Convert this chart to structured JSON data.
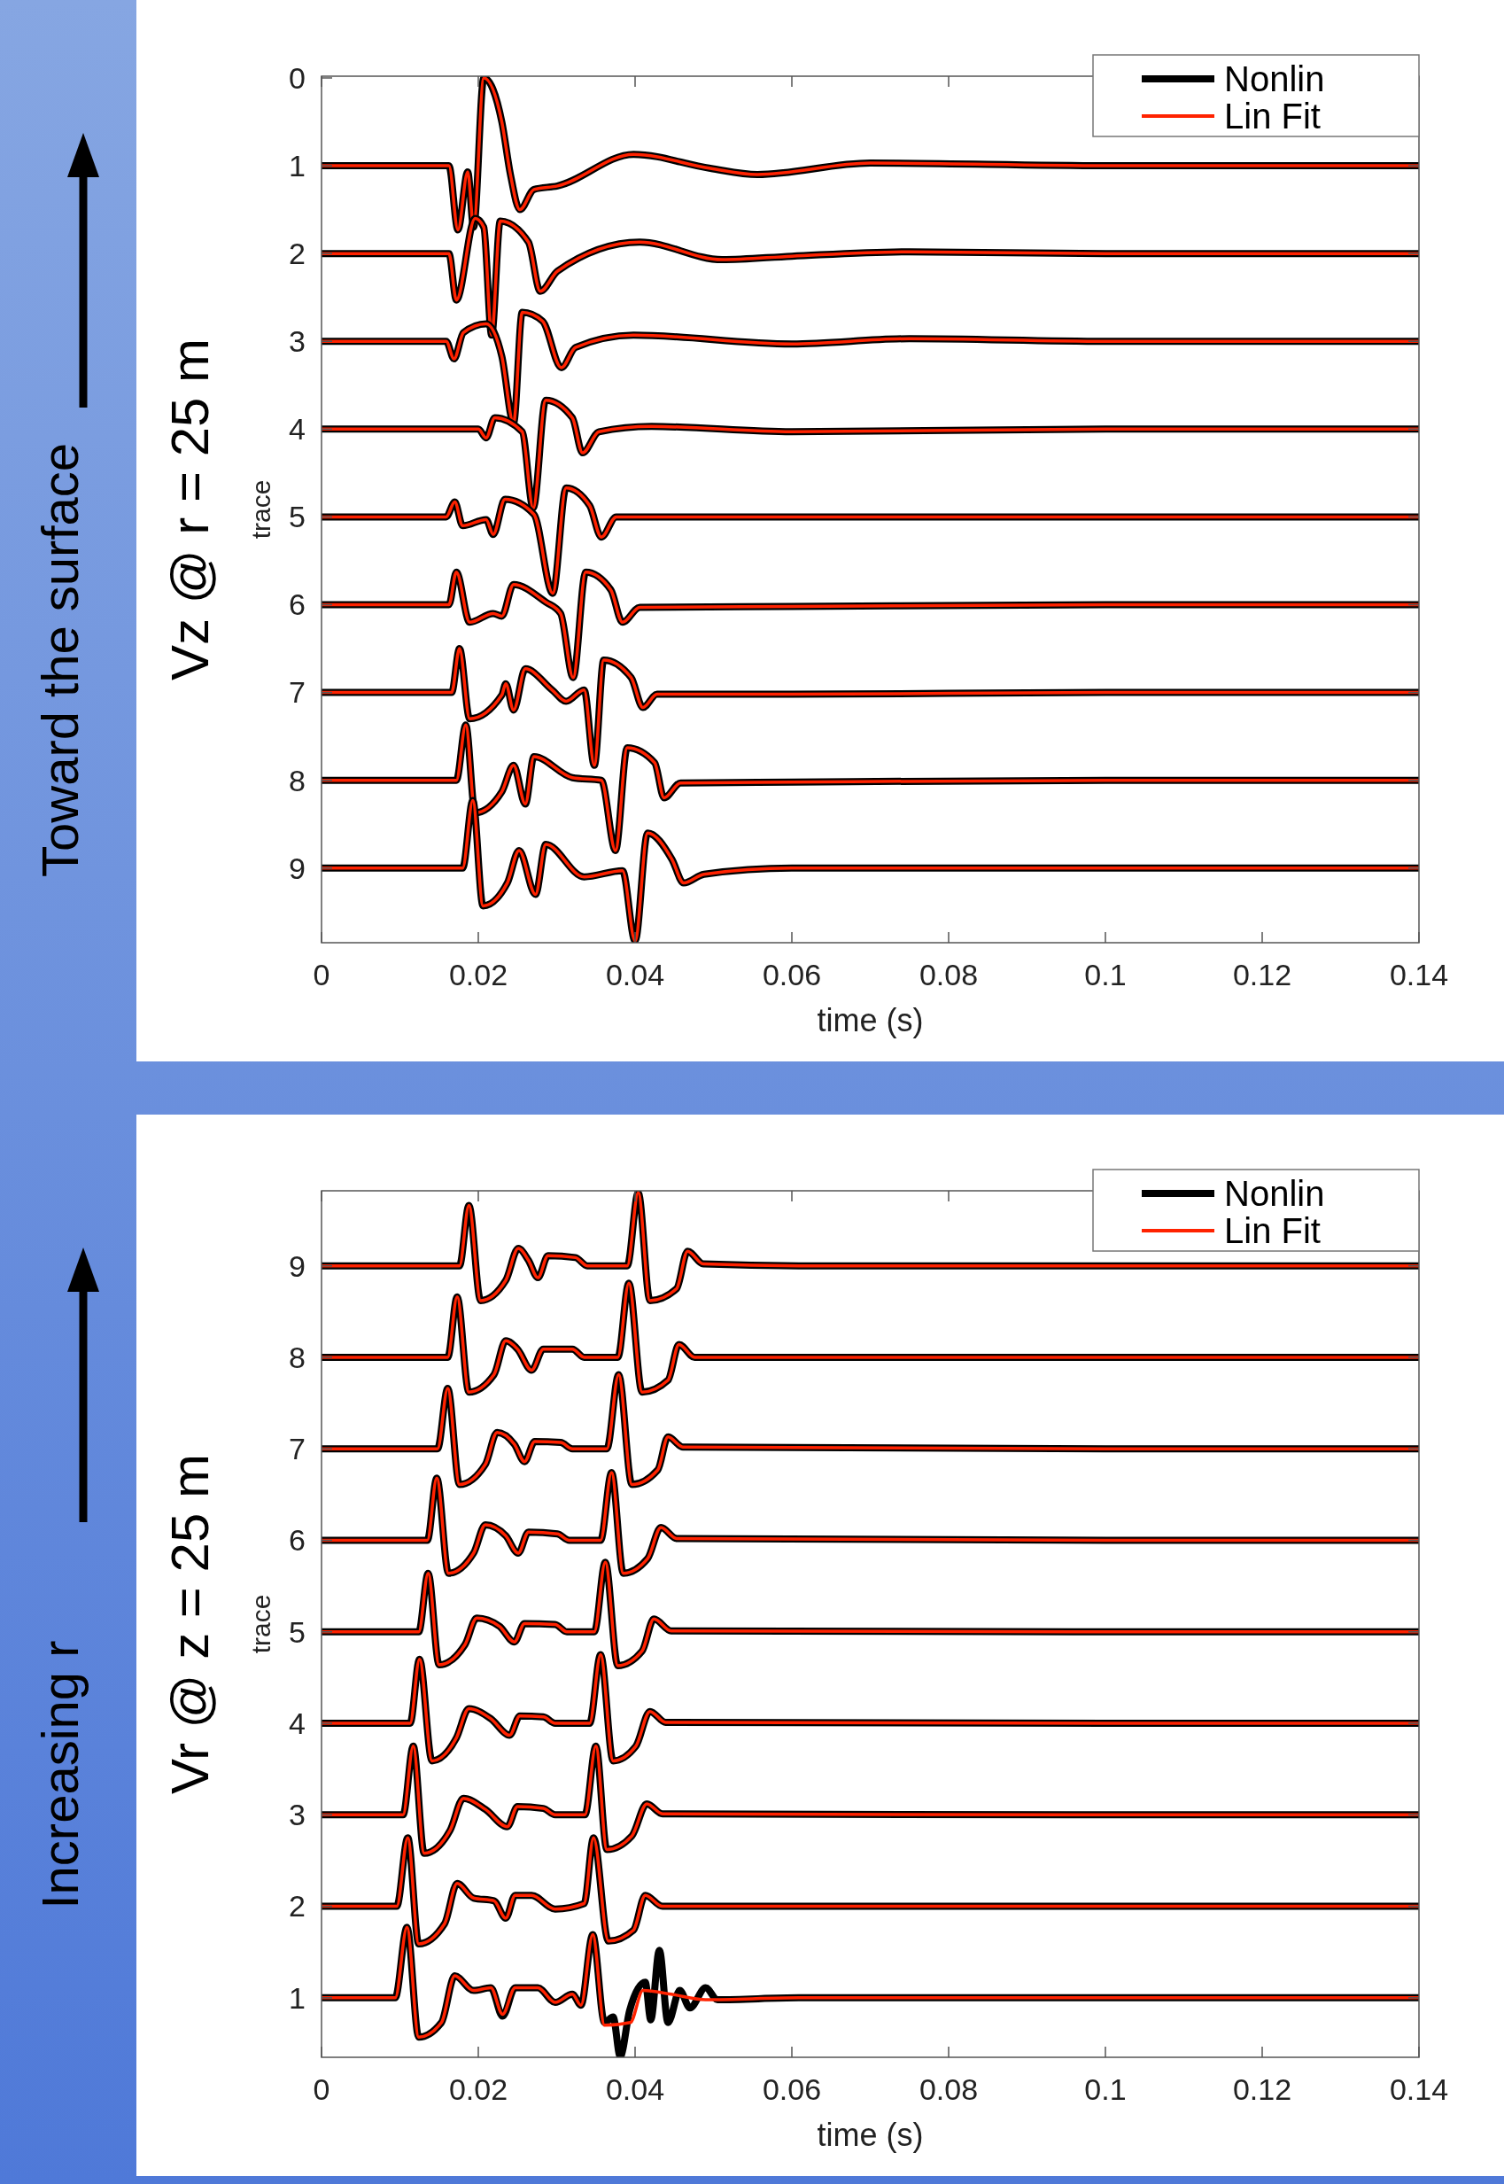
{
  "chart_data": [
    {
      "type": "line",
      "title": "Vz @ r = 25 m",
      "annotations": [
        "Toward the surface"
      ],
      "xlabel": "time (s)",
      "ylabel": "trace",
      "xlim": [
        0,
        0.14
      ],
      "xticks": [
        0,
        0.02,
        0.04,
        0.06,
        0.08,
        0.1,
        0.12,
        0.14
      ],
      "ylim": [
        9.85,
        -0.02
      ],
      "yticks": [
        0,
        1,
        2,
        3,
        4,
        5,
        6,
        7,
        8,
        9
      ],
      "legend": "top right",
      "series": [
        {
          "name": "Nonlin",
          "color": "#000000",
          "x": [
            0,
            0.01625,
            0.0174,
            0.01865,
            0.0194,
            0.0207,
            0.023,
            0.0241,
            0.0253,
            0.0271,
            0.0301,
            0.0398,
            0.0496,
            0.0556,
            0.07,
            0.1,
            0.14
          ],
          "values": [
            1,
            1,
            1.73,
            1.07,
            1.7,
            0,
            0.5,
            1.1,
            1.5,
            1.27,
            1.23,
            0.87,
            1.03,
            1.1,
            0.97,
            1,
            1
          ]
        },
        {
          "name": "Lin Fit",
          "color": "#ff2200",
          "x": [
            0,
            0.01625,
            0.0174,
            0.01865,
            0.0194,
            0.0207,
            0.023,
            0.0241,
            0.0253,
            0.0271,
            0.0301,
            0.0398,
            0.0496,
            0.0556,
            0.07,
            0.1,
            0.14
          ],
          "values": [
            1,
            1,
            1.73,
            1.07,
            1.7,
            0,
            0.5,
            1.1,
            1.5,
            1.27,
            1.23,
            0.87,
            1.03,
            1.1,
            0.97,
            1,
            1
          ]
        },
        {
          "color": "#000000",
          "x": [
            0,
            0.01625,
            0.0172,
            0.0196,
            0.0207,
            0.0217,
            0.0228,
            0.0264,
            0.0279,
            0.0301,
            0.0406,
            0.0511,
            0.06,
            0.075,
            0.1,
            0.14
          ],
          "values": [
            2,
            2,
            2.53,
            1.6,
            1.7,
            2.93,
            1.63,
            1.87,
            2.43,
            2.2,
            1.87,
            2.07,
            2.03,
            1.98,
            2,
            2
          ]
        },
        {
          "color": "#ff2200",
          "x": [
            0,
            0.01625,
            0.0172,
            0.0196,
            0.0207,
            0.0217,
            0.0228,
            0.0264,
            0.0279,
            0.0301,
            0.0406,
            0.0511,
            0.06,
            0.075,
            0.1,
            0.14
          ],
          "values": [
            2,
            2,
            2.53,
            1.6,
            1.7,
            2.93,
            1.63,
            1.87,
            2.43,
            2.2,
            1.87,
            2.07,
            2.03,
            1.98,
            2,
            2
          ]
        },
        {
          "color": "#000000",
          "x": [
            0,
            0.0159,
            0.0169,
            0.0181,
            0.021,
            0.023,
            0.0245,
            0.0256,
            0.0282,
            0.0306,
            0.0324,
            0.0398,
            0.06,
            0.075,
            0.1,
            0.14
          ],
          "values": [
            3,
            3,
            3.2,
            2.9,
            2.8,
            3.17,
            3.93,
            2.67,
            2.77,
            3.3,
            3.07,
            2.93,
            3.03,
            2.97,
            3,
            3
          ]
        },
        {
          "color": "#ff2200",
          "x": [
            0,
            0.0159,
            0.0169,
            0.0181,
            0.021,
            0.023,
            0.0245,
            0.0256,
            0.0282,
            0.0306,
            0.0324,
            0.0398,
            0.06,
            0.075,
            0.1,
            0.14
          ],
          "values": [
            3,
            3,
            3.2,
            2.9,
            2.8,
            3.17,
            3.93,
            2.67,
            2.77,
            3.3,
            3.07,
            2.93,
            3.03,
            2.97,
            3,
            3
          ]
        },
        {
          "color": "#000000",
          "x": [
            0,
            0.02,
            0.021,
            0.0221,
            0.0256,
            0.027,
            0.0286,
            0.032,
            0.0333,
            0.0354,
            0.0421,
            0.06,
            0.1,
            0.14
          ],
          "values": [
            4,
            4,
            4.1,
            3.87,
            4.03,
            4.9,
            3.67,
            3.87,
            4.27,
            4.03,
            3.97,
            4.03,
            4,
            4
          ]
        },
        {
          "color": "#ff2200",
          "x": [
            0,
            0.02,
            0.021,
            0.0221,
            0.0256,
            0.027,
            0.0286,
            0.032,
            0.0333,
            0.0354,
            0.0421,
            0.06,
            0.1,
            0.14
          ],
          "values": [
            4,
            4,
            4.1,
            3.87,
            4.03,
            4.9,
            3.67,
            3.87,
            4.27,
            4.03,
            3.97,
            4.03,
            4,
            4
          ]
        },
        {
          "color": "#000000",
          "x": [
            0,
            0.0159,
            0.017,
            0.018,
            0.021,
            0.0219,
            0.0234,
            0.0271,
            0.0295,
            0.0312,
            0.0342,
            0.0357,
            0.0376,
            0.06,
            0.1,
            0.14
          ],
          "values": [
            5,
            5,
            4.83,
            5.1,
            5.03,
            5.2,
            4.8,
            4.97,
            5.87,
            4.67,
            4.87,
            5.23,
            5,
            5,
            5,
            5
          ]
        },
        {
          "color": "#ff2200",
          "x": [
            0,
            0.0159,
            0.017,
            0.018,
            0.021,
            0.0219,
            0.0234,
            0.0271,
            0.0295,
            0.0312,
            0.0342,
            0.0357,
            0.0376,
            0.06,
            0.1,
            0.14
          ],
          "values": [
            5,
            5,
            4.83,
            5.1,
            5.03,
            5.2,
            4.8,
            4.97,
            5.87,
            4.67,
            4.87,
            5.23,
            5,
            5,
            5,
            5
          ]
        },
        {
          "color": "#000000",
          "x": [
            0,
            0.01625,
            0.0172,
            0.0189,
            0.0219,
            0.023,
            0.0245,
            0.0286,
            0.0305,
            0.0321,
            0.0337,
            0.0369,
            0.0384,
            0.0406,
            0.06,
            0.1,
            0.14
          ],
          "values": [
            6,
            6,
            5.63,
            6.2,
            6.1,
            6.13,
            5.77,
            5.97,
            6.1,
            6.83,
            5.63,
            5.83,
            6.2,
            6.03,
            6.02,
            6,
            6
          ]
        },
        {
          "color": "#ff2200",
          "x": [
            0,
            0.01625,
            0.0172,
            0.0189,
            0.0219,
            0.023,
            0.0245,
            0.0286,
            0.0305,
            0.0321,
            0.0337,
            0.0369,
            0.0384,
            0.0406,
            0.06,
            0.1,
            0.14
          ],
          "values": [
            6,
            6,
            5.63,
            6.2,
            6.1,
            6.13,
            5.77,
            5.97,
            6.1,
            6.83,
            5.63,
            5.83,
            6.2,
            6.03,
            6.02,
            6,
            6
          ]
        },
        {
          "color": "#000000",
          "x": [
            0,
            0.0166,
            0.0176,
            0.0189,
            0.023,
            0.0235,
            0.0245,
            0.026,
            0.0294,
            0.0312,
            0.0335,
            0.0348,
            0.036,
            0.0395,
            0.041,
            0.0428,
            0.06,
            0.1,
            0.14
          ],
          "values": [
            7,
            7,
            6.5,
            7.3,
            7.03,
            6.9,
            7.2,
            6.73,
            6.97,
            7.1,
            6.97,
            7.83,
            6.63,
            6.83,
            7.17,
            7.02,
            7.02,
            7,
            7
          ]
        },
        {
          "color": "#ff2200",
          "x": [
            0,
            0.0166,
            0.0176,
            0.0189,
            0.023,
            0.0235,
            0.0245,
            0.026,
            0.0294,
            0.0312,
            0.0335,
            0.0348,
            0.036,
            0.0395,
            0.041,
            0.0428,
            0.06,
            0.1,
            0.14
          ],
          "values": [
            7,
            7,
            6.5,
            7.3,
            7.03,
            6.9,
            7.2,
            6.73,
            6.97,
            7.1,
            6.97,
            7.83,
            6.63,
            6.83,
            7.17,
            7.02,
            7.02,
            7,
            7
          ]
        },
        {
          "color": "#000000",
          "x": [
            0,
            0.0172,
            0.0184,
            0.0196,
            0.023,
            0.0245,
            0.026,
            0.0271,
            0.032,
            0.0357,
            0.0375,
            0.039,
            0.0425,
            0.0437,
            0.0458,
            0.06,
            0.1,
            0.14
          ],
          "values": [
            8,
            8,
            7.37,
            8.37,
            8.13,
            7.83,
            8.27,
            7.73,
            7.97,
            8,
            8.8,
            7.63,
            7.8,
            8.2,
            8.03,
            8.02,
            8,
            8
          ]
        },
        {
          "color": "#ff2200",
          "x": [
            0,
            0.0172,
            0.0184,
            0.0196,
            0.023,
            0.0245,
            0.026,
            0.0271,
            0.032,
            0.0357,
            0.0375,
            0.039,
            0.0425,
            0.0437,
            0.0458,
            0.06,
            0.1,
            0.14
          ],
          "values": [
            8,
            8,
            7.37,
            8.37,
            8.13,
            7.83,
            8.27,
            7.73,
            7.97,
            8,
            8.8,
            7.63,
            7.8,
            8.2,
            8.03,
            8.02,
            8,
            8
          ]
        },
        {
          "color": "#000000",
          "x": [
            0,
            0.018,
            0.0193,
            0.0206,
            0.0237,
            0.0252,
            0.0273,
            0.0286,
            0.0335,
            0.0384,
            0.04,
            0.0416,
            0.0447,
            0.0462,
            0.0488,
            0.06,
            0.1,
            0.14
          ],
          "values": [
            9,
            9,
            8.23,
            9.43,
            9.17,
            8.8,
            9.3,
            8.73,
            9.1,
            9.03,
            9.83,
            8.6,
            8.9,
            9.17,
            9.07,
            9,
            9,
            9
          ]
        },
        {
          "color": "#ff2200",
          "x": [
            0,
            0.018,
            0.0193,
            0.0206,
            0.0237,
            0.0252,
            0.0273,
            0.0286,
            0.0335,
            0.0384,
            0.04,
            0.0416,
            0.0447,
            0.0462,
            0.0488,
            0.06,
            0.1,
            0.14
          ],
          "values": [
            9,
            9,
            8.23,
            9.43,
            9.17,
            8.8,
            9.3,
            8.73,
            9.1,
            9.03,
            9.83,
            8.6,
            8.9,
            9.17,
            9.07,
            9,
            9,
            9
          ]
        }
      ]
    },
    {
      "type": "line",
      "title": "Vr @ z = 25 m",
      "annotations": [
        "Increasing r"
      ],
      "xlabel": "time (s)",
      "ylabel": "trace",
      "xlim": [
        0,
        0.14
      ],
      "xticks": [
        0,
        0.02,
        0.04,
        0.06,
        0.08,
        0.1,
        0.12,
        0.14
      ],
      "ylim": [
        0.35,
        9.82
      ],
      "yticks": [
        1,
        2,
        3,
        4,
        5,
        6,
        7,
        8,
        9
      ],
      "legend": "top right",
      "series": [
        {
          "name": "Nonlin",
          "color": "#000000",
          "x": [
            0,
            0.0176,
            0.0188,
            0.0203,
            0.0235,
            0.0251,
            0.0264,
            0.0276,
            0.0289,
            0.0324,
            0.0339,
            0.039,
            0.0404,
            0.0419,
            0.0453,
            0.0467,
            0.0487,
            0.0609,
            0.1,
            0.14
          ],
          "values": [
            9,
            9,
            9.66,
            8.62,
            8.84,
            9.19,
            9.06,
            8.87,
            9.11,
            9.09,
            9,
            9,
            9.8,
            8.62,
            8.75,
            9.16,
            9.02,
            9,
            9,
            9
          ]
        },
        {
          "name": "Lin Fit",
          "color": "#ff2200",
          "x": [
            0,
            0.0176,
            0.0188,
            0.0203,
            0.0235,
            0.0251,
            0.0264,
            0.0276,
            0.0289,
            0.0324,
            0.0339,
            0.039,
            0.0404,
            0.0419,
            0.0453,
            0.0467,
            0.0487,
            0.0609,
            0.1,
            0.14
          ],
          "values": [
            9,
            9,
            9.66,
            8.62,
            8.84,
            9.19,
            9.06,
            8.87,
            9.11,
            9.09,
            9,
            9,
            9.8,
            8.62,
            8.75,
            9.16,
            9.02,
            9,
            9,
            9
          ]
        },
        {
          "color": "#000000",
          "x": [
            0,
            0.0161,
            0.0173,
            0.0188,
            0.022,
            0.0235,
            0.025,
            0.0268,
            0.0283,
            0.032,
            0.0335,
            0.0378,
            0.0392,
            0.0409,
            0.0442,
            0.0456,
            0.0476,
            0.1,
            0.14
          ],
          "values": [
            8,
            8,
            8.66,
            7.62,
            7.81,
            8.18,
            8.09,
            7.86,
            8.09,
            8.09,
            8,
            8,
            8.81,
            7.62,
            7.75,
            8.14,
            8,
            8,
            8
          ]
        },
        {
          "color": "#ff2200",
          "x": [
            0,
            0.0161,
            0.0173,
            0.0188,
            0.022,
            0.0235,
            0.025,
            0.0268,
            0.0283,
            0.032,
            0.0335,
            0.0378,
            0.0392,
            0.0409,
            0.0442,
            0.0456,
            0.0476,
            0.1,
            0.14
          ],
          "values": [
            8,
            8,
            8.66,
            7.62,
            7.81,
            8.18,
            8.09,
            7.86,
            8.09,
            8.09,
            8,
            8,
            8.81,
            7.62,
            7.75,
            8.14,
            8,
            8,
            8
          ]
        },
        {
          "color": "#000000",
          "x": [
            0,
            0.0148,
            0.0161,
            0.0176,
            0.0209,
            0.0224,
            0.0246,
            0.0259,
            0.0272,
            0.0305,
            0.032,
            0.0364,
            0.0379,
            0.0396,
            0.0429,
            0.0442,
            0.0461,
            0.1,
            0.14
          ],
          "values": [
            7,
            7,
            7.66,
            6.61,
            6.83,
            7.18,
            7.05,
            6.86,
            7.08,
            7.07,
            7,
            7,
            7.81,
            6.61,
            6.77,
            7.13,
            7.02,
            7,
            7
          ]
        },
        {
          "color": "#ff2200",
          "x": [
            0,
            0.0148,
            0.0161,
            0.0176,
            0.0209,
            0.0224,
            0.0246,
            0.0259,
            0.0272,
            0.0305,
            0.032,
            0.0364,
            0.0379,
            0.0396,
            0.0429,
            0.0442,
            0.0461,
            0.1,
            0.14
          ],
          "values": [
            7,
            7,
            7.66,
            6.61,
            6.83,
            7.18,
            7.05,
            6.86,
            7.08,
            7.07,
            7,
            7,
            7.81,
            6.61,
            6.77,
            7.13,
            7.02,
            7,
            7
          ]
        },
        {
          "color": "#000000",
          "x": [
            0,
            0.0135,
            0.0147,
            0.0162,
            0.0194,
            0.0209,
            0.0235,
            0.0251,
            0.0264,
            0.0301,
            0.0316,
            0.0356,
            0.037,
            0.0385,
            0.0416,
            0.0433,
            0.0453,
            0.1,
            0.14
          ],
          "values": [
            6,
            6,
            6.68,
            5.64,
            5.86,
            6.17,
            6.05,
            5.86,
            6.09,
            6.07,
            6,
            6,
            6.74,
            5.64,
            5.8,
            6.14,
            6.02,
            6,
            6
          ]
        },
        {
          "color": "#ff2200",
          "x": [
            0,
            0.0135,
            0.0147,
            0.0162,
            0.0194,
            0.0209,
            0.0235,
            0.0251,
            0.0264,
            0.0301,
            0.0316,
            0.0356,
            0.037,
            0.0385,
            0.0416,
            0.0433,
            0.0453,
            0.1,
            0.14
          ],
          "values": [
            6,
            6,
            6.68,
            5.64,
            5.86,
            6.17,
            6.05,
            5.86,
            6.09,
            6.07,
            6,
            6,
            6.74,
            5.64,
            5.8,
            6.14,
            6.02,
            6,
            6
          ]
        },
        {
          "color": "#000000",
          "x": [
            0,
            0.0124,
            0.0136,
            0.015,
            0.0183,
            0.0198,
            0.0227,
            0.0246,
            0.0259,
            0.0298,
            0.0313,
            0.0348,
            0.0362,
            0.0378,
            0.0409,
            0.0424,
            0.0446,
            0.1,
            0.14
          ],
          "values": [
            5,
            5,
            5.64,
            4.64,
            4.86,
            5.15,
            5.06,
            4.89,
            5.09,
            5.08,
            5,
            5,
            5.76,
            4.63,
            4.79,
            5.14,
            5.01,
            5,
            5
          ]
        },
        {
          "color": "#ff2200",
          "x": [
            0,
            0.0124,
            0.0136,
            0.015,
            0.0183,
            0.0198,
            0.0227,
            0.0246,
            0.0259,
            0.0298,
            0.0313,
            0.0348,
            0.0362,
            0.0378,
            0.0409,
            0.0424,
            0.0446,
            0.1,
            0.14
          ],
          "values": [
            5,
            5,
            5.64,
            4.64,
            4.86,
            5.15,
            5.06,
            4.89,
            5.09,
            5.08,
            5,
            5,
            5.76,
            4.63,
            4.79,
            5.14,
            5.01,
            5,
            5
          ]
        },
        {
          "color": "#000000",
          "x": [
            0,
            0.0113,
            0.0125,
            0.0141,
            0.0172,
            0.0188,
            0.0216,
            0.024,
            0.0253,
            0.0283,
            0.0298,
            0.0342,
            0.0356,
            0.0372,
            0.0401,
            0.0419,
            0.0439,
            0.1,
            0.14
          ],
          "values": [
            4,
            4,
            4.7,
            3.59,
            3.84,
            4.16,
            4.05,
            3.87,
            4.08,
            4.07,
            4,
            4,
            4.75,
            3.59,
            3.75,
            4.13,
            4.01,
            4,
            4
          ]
        },
        {
          "color": "#ff2200",
          "x": [
            0,
            0.0113,
            0.0125,
            0.0141,
            0.0172,
            0.0188,
            0.0216,
            0.024,
            0.0253,
            0.0283,
            0.0298,
            0.0342,
            0.0356,
            0.0372,
            0.0401,
            0.0419,
            0.0439,
            0.1,
            0.14
          ],
          "values": [
            4,
            4,
            4.7,
            3.59,
            3.84,
            4.16,
            4.05,
            3.87,
            4.08,
            4.07,
            4,
            4,
            4.75,
            3.59,
            3.75,
            4.13,
            4.01,
            4,
            4
          ]
        },
        {
          "color": "#000000",
          "x": [
            0,
            0.0104,
            0.0117,
            0.0131,
            0.0164,
            0.0181,
            0.0209,
            0.0237,
            0.025,
            0.0283,
            0.0298,
            0.0336,
            0.035,
            0.0364,
            0.0396,
            0.0415,
            0.0435,
            0.1,
            0.14
          ],
          "values": [
            3,
            3,
            3.75,
            2.58,
            2.83,
            3.18,
            3.06,
            2.87,
            3.09,
            3.07,
            3,
            3,
            3.75,
            2.62,
            2.77,
            3.12,
            3.01,
            3,
            3
          ]
        },
        {
          "color": "#ff2200",
          "x": [
            0,
            0.0104,
            0.0117,
            0.0131,
            0.0164,
            0.0181,
            0.0209,
            0.0237,
            0.025,
            0.0283,
            0.0298,
            0.0336,
            0.035,
            0.0364,
            0.0396,
            0.0415,
            0.0435,
            0.1,
            0.14
          ],
          "values": [
            3,
            3,
            3.75,
            2.58,
            2.83,
            3.18,
            3.06,
            2.87,
            3.09,
            3.07,
            3,
            3,
            3.75,
            2.62,
            2.77,
            3.12,
            3.01,
            3,
            3
          ]
        },
        {
          "color": "#000000",
          "x": [
            0,
            0.0096,
            0.011,
            0.0124,
            0.0157,
            0.0173,
            0.0194,
            0.022,
            0.0235,
            0.0247,
            0.0268,
            0.0298,
            0.0335,
            0.0347,
            0.0366,
            0.0398,
            0.0413,
            0.0435,
            0.1,
            0.14
          ],
          "values": [
            2,
            2,
            2.75,
            1.59,
            1.81,
            2.25,
            2.09,
            2.06,
            1.87,
            2.12,
            2.12,
            1.97,
            2.03,
            2.75,
            1.62,
            1.74,
            2.12,
            2,
            2,
            2
          ]
        },
        {
          "color": "#ff2200",
          "x": [
            0,
            0.0096,
            0.011,
            0.0124,
            0.0157,
            0.0173,
            0.0194,
            0.022,
            0.0235,
            0.0247,
            0.0268,
            0.0298,
            0.0335,
            0.0347,
            0.0366,
            0.0398,
            0.0413,
            0.0435,
            0.1,
            0.14
          ],
          "values": [
            2,
            2,
            2.75,
            1.59,
            1.81,
            2.25,
            2.09,
            2.06,
            1.87,
            2.12,
            2.12,
            1.97,
            2.03,
            2.75,
            1.62,
            1.74,
            2.12,
            2,
            2,
            2
          ]
        },
        {
          "color": "#000000",
          "x": [
            0,
            0.0094,
            0.0109,
            0.0124,
            0.0153,
            0.017,
            0.0194,
            0.0216,
            0.0231,
            0.0247,
            0.0276,
            0.0298,
            0.032,
            0.0331,
            0.0346,
            0.0361,
            0.0372,
            0.0381,
            0.0393,
            0.0413,
            0.042,
            0.0431,
            0.0442,
            0.0457,
            0.047,
            0.049,
            0.0505,
            0.0609,
            0.1,
            0.14
          ],
          "values": [
            1,
            1,
            1.77,
            0.57,
            0.73,
            1.24,
            1.08,
            1.11,
            0.8,
            1.11,
            1.11,
            0.95,
            1.04,
            0.92,
            1.69,
            0.73,
            0.79,
            0.36,
            0.86,
            1.17,
            0.76,
            1.52,
            0.73,
            1.08,
            0.89,
            1.11,
            0.98,
            1,
            1,
            1
          ]
        },
        {
          "color": "#ff2200",
          "x": [
            0,
            0.0094,
            0.0109,
            0.0124,
            0.0153,
            0.017,
            0.0194,
            0.0216,
            0.0231,
            0.0247,
            0.0276,
            0.0298,
            0.032,
            0.0331,
            0.0346,
            0.0361,
            0.0394,
            0.041,
            0.0446,
            0.049,
            0.0609,
            0.1,
            0.14
          ],
          "values": [
            1,
            1,
            1.77,
            0.57,
            0.73,
            1.24,
            1.08,
            1.11,
            0.82,
            1.11,
            1.11,
            0.95,
            1.04,
            0.92,
            1.69,
            0.7,
            0.73,
            1.08,
            1.04,
            0.98,
            1,
            1,
            1
          ]
        }
      ]
    }
  ]
}
